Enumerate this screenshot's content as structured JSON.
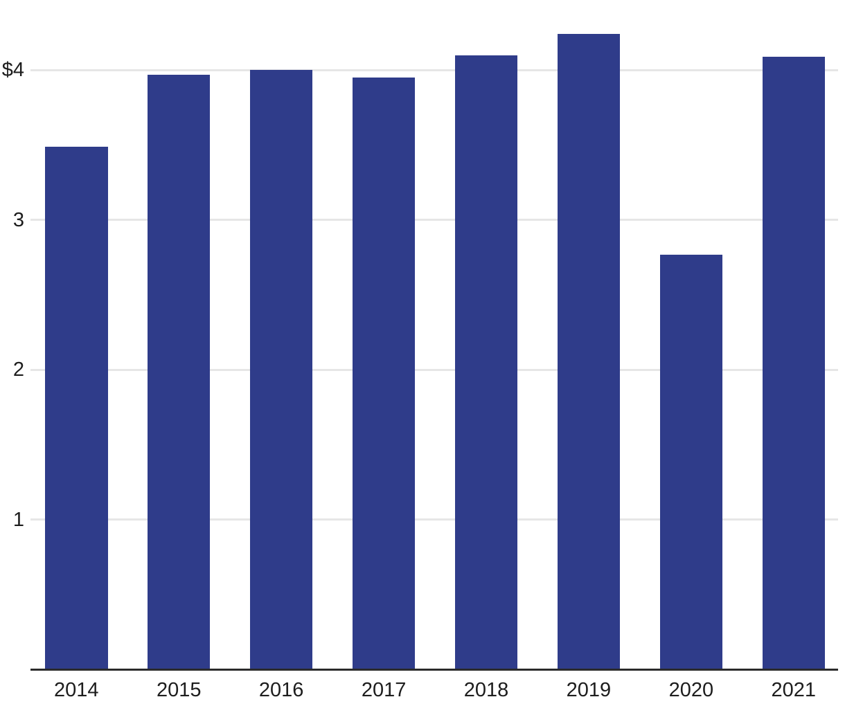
{
  "chart_data": {
    "type": "bar",
    "categories": [
      "2014",
      "2015",
      "2016",
      "2017",
      "2018",
      "2019",
      "2020",
      "2021"
    ],
    "values": [
      3.49,
      3.97,
      4.0,
      3.95,
      4.1,
      4.24,
      2.77,
      4.09
    ],
    "y_ticks": [
      {
        "value": 4,
        "label": "$4"
      },
      {
        "value": 3,
        "label": "3"
      },
      {
        "value": 2,
        "label": "2"
      },
      {
        "value": 1,
        "label": "1"
      }
    ],
    "ylim": [
      0,
      4.47
    ],
    "grid": "horizontal",
    "legend_position": "none",
    "x_axis_line": true
  },
  "style": {
    "bar_color": "#2f3c8a",
    "grid_color": "#e6e6e6",
    "axis_color": "#2b2b2b",
    "text_color": "#1d1d1d",
    "background_color": "#ffffff"
  }
}
